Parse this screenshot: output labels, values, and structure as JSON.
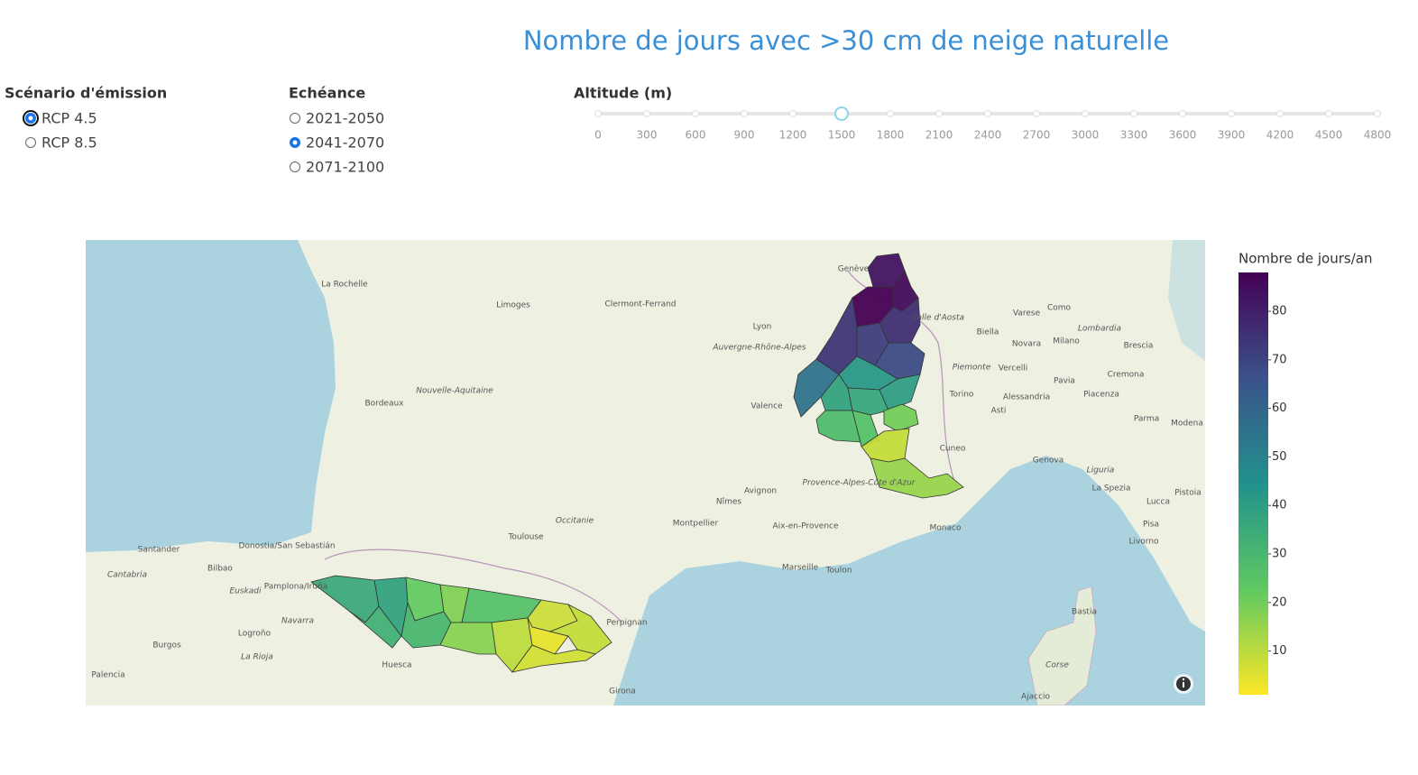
{
  "title": "Nombre de jours avec >30 cm de neige naturelle",
  "controls": {
    "scenario": {
      "label": "Scénario d'émission",
      "options": [
        "RCP 4.5",
        "RCP 8.5"
      ],
      "selected": 0
    },
    "echeance": {
      "label": "Echéance",
      "options": [
        "2021-2050",
        "2041-2070",
        "2071-2100"
      ],
      "selected": 1
    },
    "altitude": {
      "label": "Altitude (m)",
      "marks": [
        0,
        300,
        600,
        900,
        1200,
        1500,
        1800,
        2100,
        2400,
        2700,
        3000,
        3300,
        3600,
        3900,
        4200,
        4500,
        4800
      ],
      "selected": 1500
    }
  },
  "map": {
    "labels": [
      "La Rochelle",
      "Limoges",
      "Clermont-Ferrand",
      "Lyon",
      "Genève",
      "Bordeaux",
      "Nouvelle-Aquitaine",
      "Auvergne-Rhône-Alpes",
      "Valence",
      "Torino",
      "Milano",
      "Genova",
      "Cuneo",
      "Toulouse",
      "Occitanie",
      "Montpellier",
      "Nîmes",
      "Avignon",
      "Aix-en-Provence",
      "Marseille",
      "Toulon",
      "Monaco",
      "Perpignan",
      "Donostia/San Sebastián",
      "Bilbao",
      "Santander",
      "Cantabria",
      "Euskadi",
      "Pamplona/Iruña",
      "Navarra",
      "Logroño",
      "La Rioja",
      "Burgos",
      "Huesca",
      "Palencia",
      "Girona",
      "Bastia",
      "Corse",
      "Ajaccio",
      "Lucca",
      "Pisa",
      "Livorno",
      "La Spezia",
      "Parma",
      "Piacenza",
      "Cremona",
      "Brescia",
      "Novara",
      "Vercelli",
      "Biella",
      "Varese",
      "Como",
      "Asti",
      "Alessandria",
      "Pavia",
      "Piemonte",
      "Lombardia",
      "Liguria",
      "Modena",
      "Pistoia",
      "Valle d'Aosta",
      "Provence-Alpes-Côte d'Azur"
    ],
    "massif_values": [
      83,
      85,
      88,
      74,
      72,
      76,
      68,
      55,
      42,
      38,
      36,
      40,
      28,
      26,
      20,
      9,
      15,
      35,
      33,
      38,
      22,
      30,
      18,
      26,
      17,
      10,
      8,
      4,
      9,
      7
    ],
    "colorbar": {
      "title": "Nombre de jours/an",
      "range": [
        1,
        88
      ],
      "ticks": [
        10,
        20,
        30,
        40,
        50,
        60,
        70,
        80
      ]
    }
  }
}
